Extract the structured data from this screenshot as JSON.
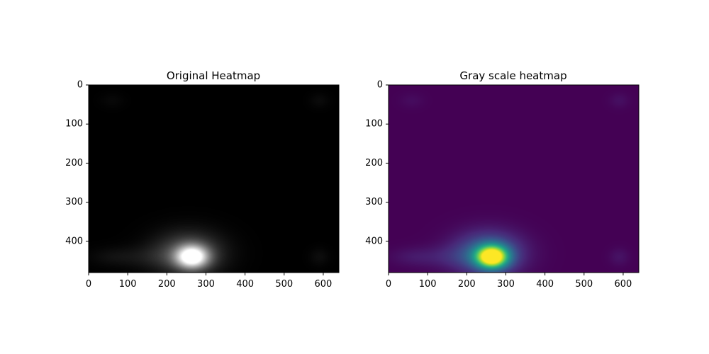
{
  "chart_data": [
    {
      "type": "heatmap",
      "title": "Original Heatmap",
      "colormap": "gray",
      "xlim": [
        0,
        640
      ],
      "ylim": [
        480,
        0
      ],
      "y_inverted": true,
      "xticks": [
        "0",
        "100",
        "200",
        "300",
        "400",
        "500",
        "600"
      ],
      "yticks": [
        "0",
        "100",
        "200",
        "300",
        "400"
      ],
      "xtick_values": [
        0,
        100,
        200,
        300,
        400,
        500,
        600
      ],
      "ytick_values": [
        0,
        100,
        200,
        300,
        400
      ],
      "hotspots": [
        {
          "x": 265,
          "y": 440,
          "sx": 28,
          "sy": 20,
          "amp": 1.0
        },
        {
          "x": 255,
          "y": 430,
          "sx": 60,
          "sy": 38,
          "amp": 0.33
        },
        {
          "x": 160,
          "y": 440,
          "sx": 75,
          "sy": 20,
          "amp": 0.07
        },
        {
          "x": 60,
          "y": 440,
          "sx": 40,
          "sy": 16,
          "amp": 0.04
        },
        {
          "x": 590,
          "y": 440,
          "sx": 18,
          "sy": 16,
          "amp": 0.05
        },
        {
          "x": 590,
          "y": 40,
          "sx": 18,
          "sy": 14,
          "amp": 0.04
        },
        {
          "x": 60,
          "y": 40,
          "sx": 22,
          "sy": 14,
          "amp": 0.03
        }
      ]
    },
    {
      "type": "heatmap",
      "title": "Gray scale heatmap",
      "colormap": "viridis",
      "xlim": [
        0,
        640
      ],
      "ylim": [
        480,
        0
      ],
      "y_inverted": true,
      "xticks": [
        "0",
        "100",
        "200",
        "300",
        "400",
        "500",
        "600"
      ],
      "yticks": [
        "0",
        "100",
        "200",
        "300",
        "400"
      ],
      "xtick_values": [
        0,
        100,
        200,
        300,
        400,
        500,
        600
      ],
      "ytick_values": [
        0,
        100,
        200,
        300,
        400
      ],
      "hotspots": [
        {
          "x": 265,
          "y": 440,
          "sx": 28,
          "sy": 20,
          "amp": 1.0
        },
        {
          "x": 255,
          "y": 430,
          "sx": 60,
          "sy": 38,
          "amp": 0.33
        },
        {
          "x": 160,
          "y": 440,
          "sx": 75,
          "sy": 20,
          "amp": 0.07
        },
        {
          "x": 60,
          "y": 440,
          "sx": 40,
          "sy": 16,
          "amp": 0.04
        },
        {
          "x": 590,
          "y": 440,
          "sx": 18,
          "sy": 16,
          "amp": 0.05
        },
        {
          "x": 590,
          "y": 40,
          "sx": 18,
          "sy": 14,
          "amp": 0.04
        },
        {
          "x": 60,
          "y": 40,
          "sx": 22,
          "sy": 14,
          "amp": 0.03
        }
      ]
    }
  ]
}
